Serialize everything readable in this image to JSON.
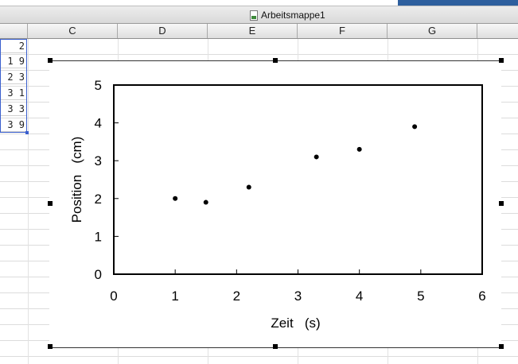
{
  "window": {
    "title": "Arbeitsmappe1",
    "icon": "document-icon"
  },
  "columns": [
    "C",
    "D",
    "E",
    "F",
    "G"
  ],
  "cells": [
    "2",
    "1 9",
    "2 3",
    "3 1",
    "3 3",
    "3 9"
  ],
  "colors": {
    "selection": "#3a5fcd",
    "marker": "#000000",
    "plot_border": "#000000"
  },
  "chart_data": {
    "type": "scatter",
    "title": "",
    "xlabel": "Zeit   (s)",
    "ylabel": "Position   (cm)",
    "xlim": [
      0,
      6
    ],
    "ylim": [
      0,
      5
    ],
    "xticks": [
      "0",
      "1",
      "2",
      "3",
      "4",
      "5",
      "6"
    ],
    "yticks": [
      "0",
      "1",
      "2",
      "3",
      "4",
      "5"
    ],
    "grid": false,
    "legend": "none",
    "series": [
      {
        "x": [
          1.0,
          1.5,
          2.2,
          3.3,
          4.0,
          4.9
        ],
        "y": [
          2.0,
          1.9,
          2.3,
          3.1,
          3.3,
          3.9
        ]
      }
    ]
  }
}
